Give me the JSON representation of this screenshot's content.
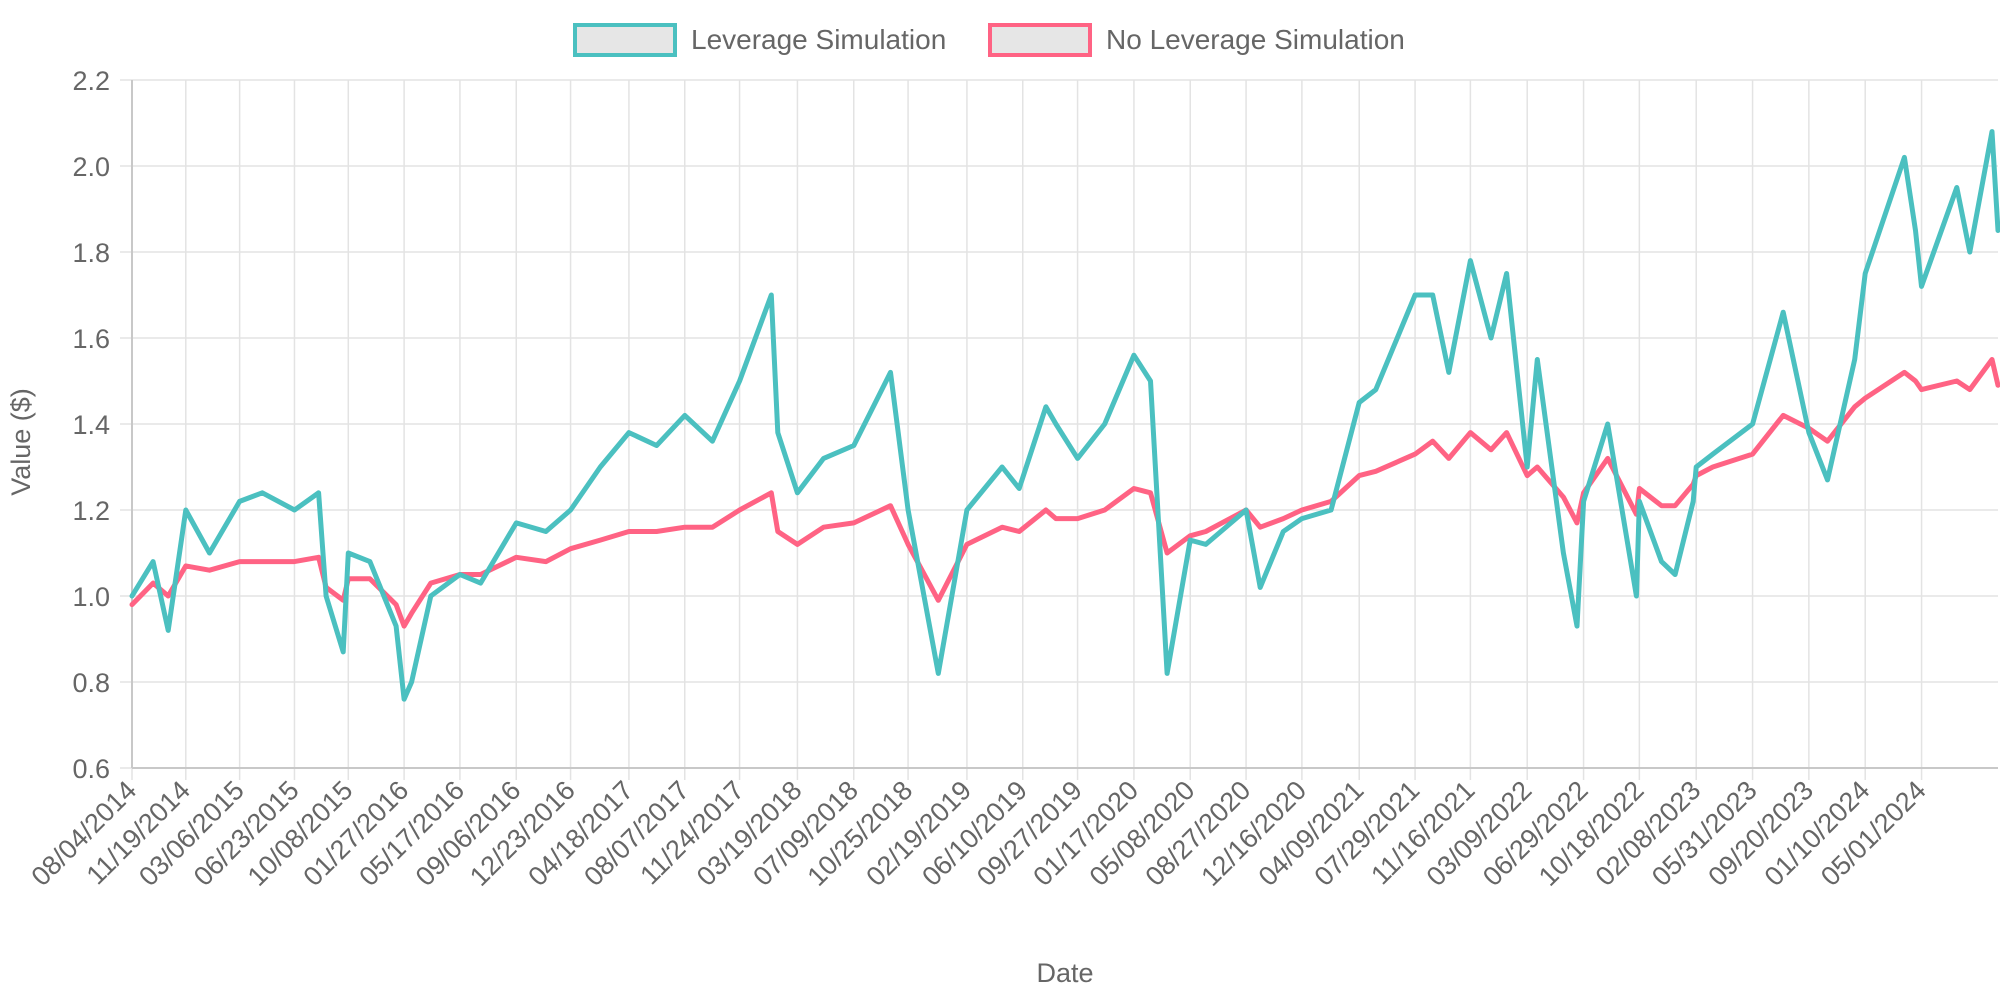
{
  "chart_data": {
    "type": "line",
    "xlabel": "Date",
    "ylabel": "Value ($)",
    "ylim": [
      0.6,
      2.2
    ],
    "yticks": [
      "0.6",
      "0.8",
      "1.0",
      "1.2",
      "1.4",
      "1.6",
      "1.8",
      "2.0",
      "2.2"
    ],
    "grid": true,
    "legend_position": "top",
    "x_start": "08/04/2014",
    "x_end": "09/30/2024",
    "x_tick_labels": [
      "08/04/2014",
      "11/19/2014",
      "03/06/2015",
      "06/23/2015",
      "10/08/2015",
      "01/27/2016",
      "05/17/2016",
      "09/06/2016",
      "12/23/2016",
      "04/18/2017",
      "08/07/2017",
      "11/24/2017",
      "03/19/2018",
      "07/09/2018",
      "10/25/2018",
      "02/19/2019",
      "06/10/2019",
      "09/27/2019",
      "01/17/2020",
      "05/08/2020",
      "08/27/2020",
      "12/16/2020",
      "04/09/2021",
      "07/29/2021",
      "11/16/2021",
      "03/09/2022",
      "06/29/2022",
      "10/18/2022",
      "02/08/2023",
      "05/31/2023",
      "09/20/2023",
      "01/10/2024",
      "05/01/2024"
    ],
    "x": [
      "08/04/2014",
      "09/15/2014",
      "10/15/2014",
      "11/19/2014",
      "01/05/2015",
      "03/06/2015",
      "04/20/2015",
      "06/23/2015",
      "08/10/2015",
      "08/25/2015",
      "09/28/2015",
      "10/08/2015",
      "11/20/2015",
      "01/11/2016",
      "01/27/2016",
      "02/11/2016",
      "03/20/2016",
      "05/17/2016",
      "06/27/2016",
      "09/06/2016",
      "11/04/2016",
      "12/23/2016",
      "02/20/2017",
      "04/18/2017",
      "06/12/2017",
      "08/07/2017",
      "10/01/2017",
      "11/24/2017",
      "01/26/2018",
      "02/08/2018",
      "03/19/2018",
      "05/10/2018",
      "07/09/2018",
      "09/20/2018",
      "10/25/2018",
      "12/24/2018",
      "02/19/2019",
      "04/30/2019",
      "06/03/2019",
      "07/26/2019",
      "08/15/2019",
      "09/27/2019",
      "11/20/2019",
      "01/17/2020",
      "02/19/2020",
      "03/23/2020",
      "05/08/2020",
      "06/08/2020",
      "08/27/2020",
      "09/24/2020",
      "11/09/2020",
      "12/16/2020",
      "02/12/2021",
      "04/09/2021",
      "05/12/2021",
      "07/29/2021",
      "09/02/2021",
      "10/04/2021",
      "11/16/2021",
      "12/27/2021",
      "01/27/2022",
      "03/09/2022",
      "03/29/2022",
      "05/20/2022",
      "06/16/2022",
      "06/29/2022",
      "08/16/2022",
      "10/12/2022",
      "10/18/2022",
      "12/01/2022",
      "12/28/2022",
      "02/02/2023",
      "02/08/2023",
      "03/13/2023",
      "05/31/2023",
      "07/31/2023",
      "09/20/2023",
      "10/27/2023",
      "12/20/2023",
      "01/10/2024",
      "03/28/2024",
      "04/19/2024",
      "05/01/2024",
      "07/10/2024",
      "08/05/2024",
      "09/18/2024",
      "09/30/2024"
    ],
    "series": [
      {
        "name": "Leverage Simulation",
        "color": "#4bc0c0",
        "values": [
          1.0,
          1.08,
          0.92,
          1.2,
          1.1,
          1.22,
          1.24,
          1.2,
          1.24,
          1.0,
          0.87,
          1.1,
          1.08,
          0.93,
          0.76,
          0.8,
          1.0,
          1.05,
          1.03,
          1.17,
          1.15,
          1.2,
          1.3,
          1.38,
          1.35,
          1.42,
          1.36,
          1.5,
          1.7,
          1.38,
          1.24,
          1.32,
          1.35,
          1.52,
          1.2,
          0.82,
          1.2,
          1.3,
          1.25,
          1.44,
          1.4,
          1.32,
          1.4,
          1.56,
          1.5,
          0.82,
          1.13,
          1.12,
          1.2,
          1.02,
          1.15,
          1.18,
          1.2,
          1.45,
          1.48,
          1.7,
          1.7,
          1.52,
          1.78,
          1.6,
          1.75,
          1.3,
          1.55,
          1.1,
          0.93,
          1.22,
          1.4,
          1.0,
          1.22,
          1.08,
          1.05,
          1.22,
          1.3,
          1.33,
          1.4,
          1.66,
          1.38,
          1.27,
          1.55,
          1.75,
          2.02,
          1.85,
          1.72,
          1.95,
          1.8,
          2.08,
          1.85
        ]
      },
      {
        "name": "No Leverage Simulation",
        "color": "#ff6384",
        "values": [
          0.98,
          1.03,
          1.0,
          1.07,
          1.06,
          1.08,
          1.08,
          1.08,
          1.09,
          1.02,
          0.99,
          1.04,
          1.04,
          0.98,
          0.93,
          0.96,
          1.03,
          1.05,
          1.05,
          1.09,
          1.08,
          1.11,
          1.13,
          1.15,
          1.15,
          1.16,
          1.16,
          1.2,
          1.24,
          1.15,
          1.12,
          1.16,
          1.17,
          1.21,
          1.12,
          0.99,
          1.12,
          1.16,
          1.15,
          1.2,
          1.18,
          1.18,
          1.2,
          1.25,
          1.24,
          1.1,
          1.14,
          1.15,
          1.2,
          1.16,
          1.18,
          1.2,
          1.22,
          1.28,
          1.29,
          1.33,
          1.36,
          1.32,
          1.38,
          1.34,
          1.38,
          1.28,
          1.3,
          1.23,
          1.17,
          1.24,
          1.32,
          1.19,
          1.25,
          1.21,
          1.21,
          1.26,
          1.28,
          1.3,
          1.33,
          1.42,
          1.39,
          1.36,
          1.44,
          1.46,
          1.52,
          1.5,
          1.48,
          1.5,
          1.48,
          1.55,
          1.49
        ]
      }
    ]
  }
}
